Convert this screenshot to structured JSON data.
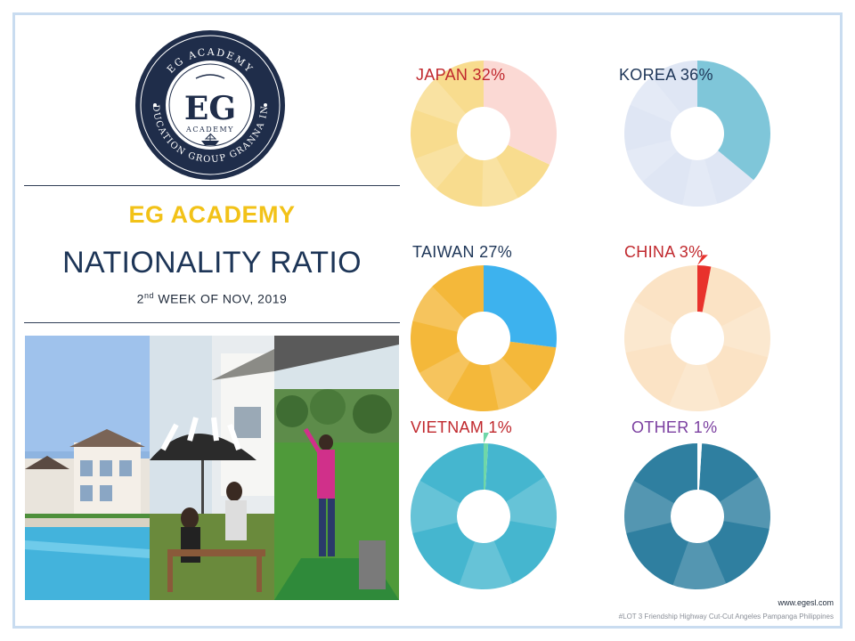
{
  "logo": {
    "ring_top": "EG ACADEMY",
    "ring_bottom": "EDUCATION GROUP GRANNA INC",
    "monogram": "EG",
    "word": "ACADEMY"
  },
  "header": {
    "title_brand": "EG ACADEMY",
    "title_main": "NATIONALITY RATIO",
    "subtitle_ordinal": "2",
    "subtitle_suffix": "nd",
    "subtitle_rest": " WEEK OF NOV, 2019"
  },
  "colors": {
    "brand_yellow": "#f2c218",
    "navy": "#1d3557",
    "frame": "#c9dcf0"
  },
  "chart_data": [
    {
      "type": "pie",
      "name": "JAPAN",
      "label": "JAPAN 32%",
      "value": 32,
      "label_color": "#c0282d",
      "slice_colors": [
        "#fbd9d4",
        "#f9a8ae",
        "#ee6f7a"
      ],
      "rest_color": "#f8dc8e"
    },
    {
      "type": "pie",
      "name": "KOREA",
      "label": "KOREA 36%",
      "value": 36,
      "label_color": "#1d3557",
      "slice_colors": [
        "#7fc6d9",
        "#f3d27a",
        "#3aa6c2"
      ],
      "rest_color": "#dfe6f4"
    },
    {
      "type": "pie",
      "name": "TAIWAN",
      "label": "TAIWAN 27%",
      "value": 27,
      "label_color": "#1d3557",
      "slice_colors": [
        "#3db2ee",
        "#1e8fd0",
        "#7fd0f5"
      ],
      "rest_color": "#f4b83a"
    },
    {
      "type": "pie",
      "name": "CHINA",
      "label": "CHINA 3%",
      "value": 3,
      "label_color": "#c0282d",
      "slice_colors": [
        "#e8322c",
        "#c1201c",
        "#ff5a4e"
      ],
      "rest_color": "#fbe3c5"
    },
    {
      "type": "pie",
      "name": "VIETNAM",
      "label": "VIETNAM 1%",
      "value": 1,
      "label_color": "#c0282d",
      "slice_colors": [
        "#6fd7a8",
        "#4bbd8c",
        "#9ee8c4"
      ],
      "rest_color": "#45b6cf"
    },
    {
      "type": "pie",
      "name": "OTHER",
      "label": "OTHER 1%",
      "value": 1,
      "label_color": "#7b3fa0",
      "slice_colors": [
        "#ffffff",
        "#e9e9e9",
        "#ffffff"
      ],
      "rest_color": "#2f7fa0"
    }
  ],
  "footer": {
    "url": "www.egesl.com",
    "address": "#LOT 3 Friendship Highway Cut-Cut Angeles Pampanga Philippines"
  }
}
